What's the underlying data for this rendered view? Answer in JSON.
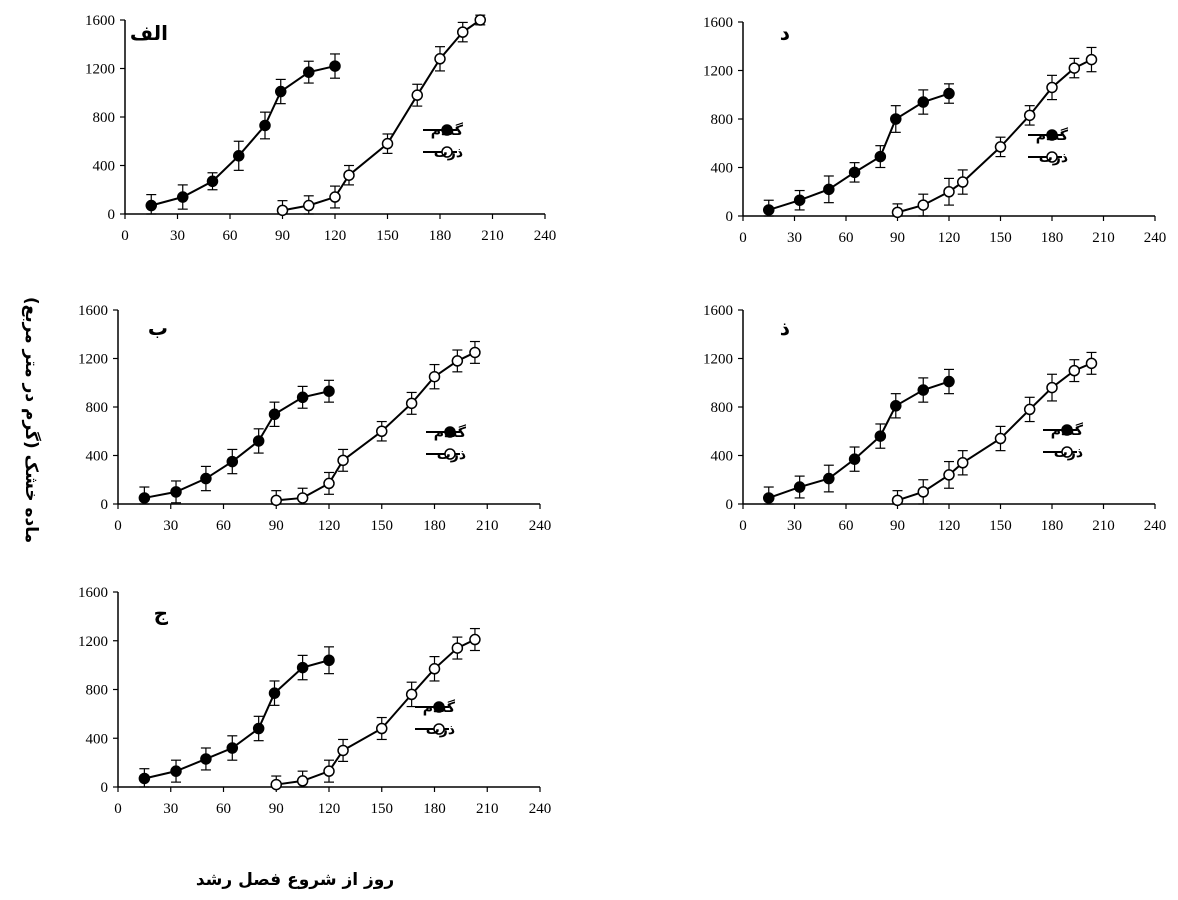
{
  "figure": {
    "xlabel": "روز از شروع فصل رشد",
    "ylabel": "ماده خشک (گرم در متر مربع)"
  },
  "chart_data": [
    {
      "type": "line",
      "panel_label": "الف",
      "xlim": [
        0,
        240
      ],
      "ylim": [
        0,
        1600
      ],
      "xticks": [
        0,
        30,
        60,
        90,
        120,
        150,
        180,
        210,
        240
      ],
      "yticks": [
        0,
        400,
        800,
        1200,
        1600
      ],
      "legend": "right",
      "series": [
        {
          "name": "گندم",
          "marker": "filled",
          "x": [
            15,
            33,
            50,
            65,
            80,
            89,
            105,
            120
          ],
          "y": [
            70,
            140,
            270,
            480,
            730,
            1010,
            1170,
            1220
          ],
          "err": [
            90,
            100,
            70,
            120,
            110,
            100,
            90,
            100
          ]
        },
        {
          "name": "ذرت",
          "marker": "open",
          "x": [
            90,
            105,
            120,
            128,
            150,
            167,
            180,
            193,
            203
          ],
          "y": [
            30,
            70,
            140,
            320,
            580,
            980,
            1280,
            1500,
            1600
          ],
          "err": [
            80,
            80,
            90,
            80,
            80,
            90,
            100,
            80,
            40
          ]
        }
      ]
    },
    {
      "type": "line",
      "panel_label": "ب",
      "xlim": [
        0,
        240
      ],
      "ylim": [
        0,
        1600
      ],
      "xticks": [
        0,
        30,
        60,
        90,
        120,
        150,
        180,
        210,
        240
      ],
      "yticks": [
        0,
        400,
        800,
        1200,
        1600
      ],
      "legend": "right",
      "series": [
        {
          "name": "گندم",
          "marker": "filled",
          "x": [
            15,
            33,
            50,
            65,
            80,
            89,
            105,
            120
          ],
          "y": [
            50,
            100,
            210,
            350,
            520,
            740,
            880,
            930
          ],
          "err": [
            90,
            90,
            100,
            100,
            100,
            100,
            90,
            90
          ]
        },
        {
          "name": "ذرت",
          "marker": "open",
          "x": [
            90,
            105,
            120,
            128,
            150,
            167,
            180,
            193,
            203
          ],
          "y": [
            30,
            50,
            170,
            360,
            600,
            830,
            1050,
            1180,
            1250
          ],
          "err": [
            80,
            80,
            90,
            90,
            80,
            90,
            100,
            90,
            90
          ]
        }
      ]
    },
    {
      "type": "line",
      "panel_label": "ج",
      "xlim": [
        0,
        240
      ],
      "ylim": [
        0,
        1600
      ],
      "xticks": [
        0,
        30,
        60,
        90,
        120,
        150,
        180,
        210,
        240
      ],
      "yticks": [
        0,
        400,
        800,
        1200,
        1600
      ],
      "legend": "right",
      "series": [
        {
          "name": "گندم",
          "marker": "filled",
          "x": [
            15,
            33,
            50,
            65,
            80,
            89,
            105,
            120
          ],
          "y": [
            70,
            130,
            230,
            320,
            480,
            770,
            980,
            1040
          ],
          "err": [
            80,
            90,
            90,
            100,
            100,
            100,
            100,
            110
          ]
        },
        {
          "name": "ذرت",
          "marker": "open",
          "x": [
            90,
            105,
            120,
            128,
            150,
            167,
            180,
            193,
            203
          ],
          "y": [
            20,
            50,
            130,
            300,
            480,
            760,
            970,
            1140,
            1210
          ],
          "err": [
            70,
            80,
            90,
            90,
            90,
            100,
            100,
            90,
            90
          ]
        }
      ]
    },
    {
      "type": "line",
      "panel_label": "د",
      "xlim": [
        0,
        240
      ],
      "ylim": [
        0,
        1600
      ],
      "xticks": [
        0,
        30,
        60,
        90,
        120,
        150,
        180,
        210,
        240
      ],
      "yticks": [
        0,
        400,
        800,
        1200,
        1600
      ],
      "legend": "right",
      "series": [
        {
          "name": "گندم",
          "marker": "filled",
          "x": [
            15,
            33,
            50,
            65,
            80,
            89,
            105,
            120
          ],
          "y": [
            50,
            130,
            220,
            360,
            490,
            800,
            940,
            1010
          ],
          "err": [
            80,
            80,
            110,
            80,
            90,
            110,
            100,
            80
          ]
        },
        {
          "name": "ذرت",
          "marker": "open",
          "x": [
            90,
            105,
            120,
            128,
            150,
            167,
            180,
            193,
            203
          ],
          "y": [
            30,
            90,
            200,
            280,
            570,
            830,
            1060,
            1220,
            1290
          ],
          "err": [
            70,
            90,
            110,
            100,
            80,
            80,
            100,
            80,
            100
          ]
        }
      ]
    },
    {
      "type": "line",
      "panel_label": "ذ",
      "xlim": [
        0,
        240
      ],
      "ylim": [
        0,
        1600
      ],
      "xticks": [
        0,
        30,
        60,
        90,
        120,
        150,
        180,
        210,
        240
      ],
      "yticks": [
        0,
        400,
        800,
        1200,
        1600
      ],
      "legend": "right",
      "series": [
        {
          "name": "گندم",
          "marker": "filled",
          "x": [
            15,
            33,
            50,
            65,
            80,
            89,
            105,
            120
          ],
          "y": [
            50,
            140,
            210,
            370,
            560,
            810,
            940,
            1010
          ],
          "err": [
            90,
            90,
            110,
            100,
            100,
            100,
            100,
            100
          ]
        },
        {
          "name": "ذرت",
          "marker": "open",
          "x": [
            90,
            105,
            120,
            128,
            150,
            167,
            180,
            193,
            203
          ],
          "y": [
            30,
            100,
            240,
            340,
            540,
            780,
            960,
            1100,
            1160
          ],
          "err": [
            80,
            100,
            110,
            100,
            100,
            100,
            110,
            90,
            90
          ]
        }
      ]
    }
  ]
}
